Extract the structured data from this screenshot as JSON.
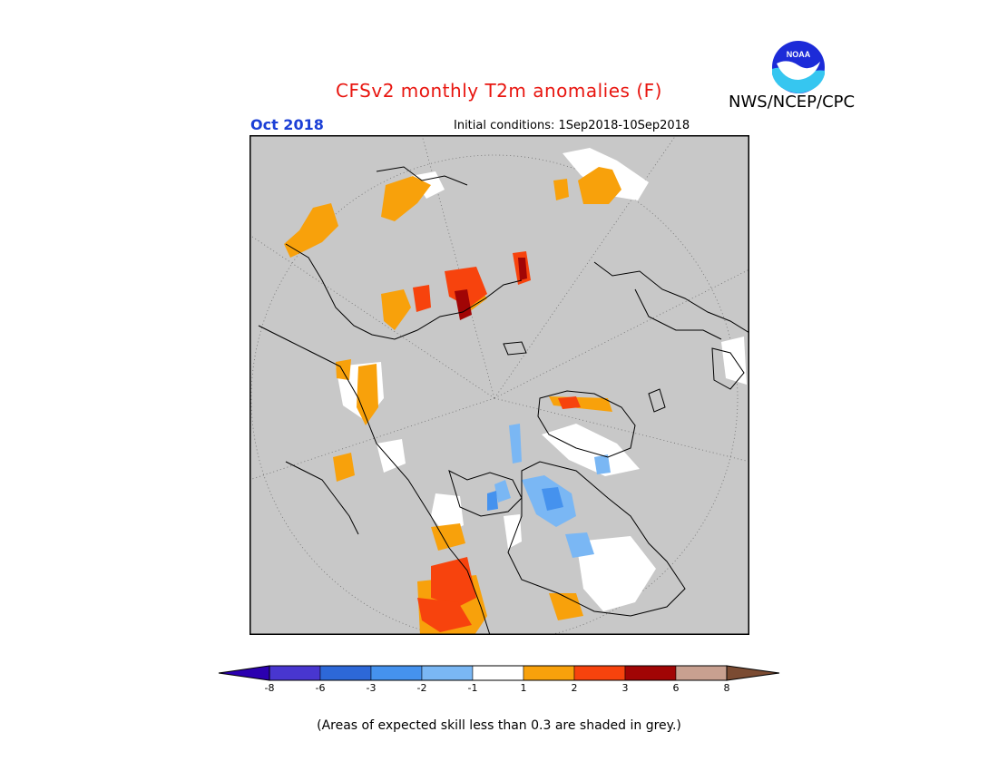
{
  "header": {
    "title": "CFSv2 monthly T2m anomalies (F)",
    "org": "NWS/NCEP/CPC",
    "logo_text": "NOAA",
    "valid_month": "Oct 2018",
    "initial_conditions": "Initial conditions: 1Sep2018-10Sep2018"
  },
  "map": {
    "projection": "north-polar-stereographic",
    "background_color": "#c8c8c8",
    "land_outline_color": "#000000",
    "grid": "dotted"
  },
  "legend": {
    "bins": [
      {
        "color": "#2b00b0"
      },
      {
        "color": "#4836cf"
      },
      {
        "color": "#2d68d8"
      },
      {
        "color": "#4592ee"
      },
      {
        "color": "#7ab7f4"
      },
      {
        "color": "#ffffff"
      },
      {
        "color": "#f8a10b"
      },
      {
        "color": "#f7430d"
      },
      {
        "color": "#a10505"
      },
      {
        "color": "#c8a090"
      },
      {
        "color": "#7b4b32"
      }
    ],
    "tick_labels": [
      "-8",
      "-6",
      "-3",
      "-2",
      "-1",
      "1",
      "2",
      "3",
      "6",
      "8"
    ]
  },
  "footnote": "(Areas of expected skill less than 0.3 are shaded in grey.)"
}
